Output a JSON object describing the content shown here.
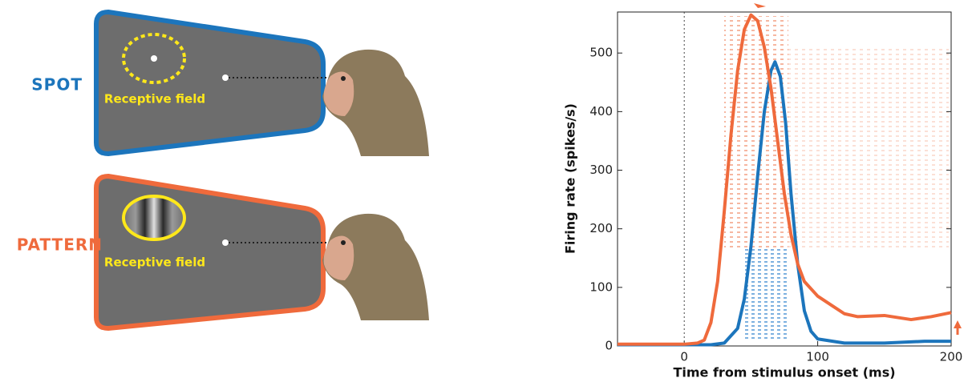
{
  "chart_data": {
    "type": "line",
    "xlabel": "Time from stimulus onset (ms)",
    "ylabel": "Firing rate (spikes/s)",
    "xlim": [
      -50,
      200
    ],
    "xticks": [
      0,
      100,
      200
    ],
    "ylim": [
      0,
      570
    ],
    "yticks": [
      0,
      100,
      200,
      300,
      400,
      500
    ],
    "series": [
      {
        "name": "SPOT",
        "color": "#1c75bc",
        "x": [
          -50,
          0,
          20,
          30,
          40,
          45,
          50,
          55,
          60,
          65,
          68,
          72,
          76,
          80,
          85,
          90,
          95,
          100,
          120,
          150,
          180,
          200
        ],
        "values": [
          2,
          2,
          2,
          5,
          30,
          80,
          170,
          290,
          400,
          470,
          485,
          460,
          380,
          260,
          140,
          60,
          25,
          12,
          5,
          5,
          8,
          8
        ]
      },
      {
        "name": "PATTERN",
        "color": "#ef6a3c",
        "x": [
          -50,
          0,
          10,
          15,
          20,
          25,
          30,
          35,
          40,
          45,
          50,
          55,
          60,
          65,
          70,
          75,
          80,
          85,
          90,
          100,
          110,
          120,
          130,
          150,
          170,
          185,
          200
        ],
        "values": [
          3,
          3,
          5,
          10,
          40,
          110,
          230,
          360,
          470,
          540,
          565,
          555,
          510,
          440,
          350,
          260,
          190,
          140,
          110,
          85,
          70,
          55,
          50,
          52,
          45,
          50,
          57
        ]
      }
    ]
  },
  "diagram": {
    "receptive_field_labels": [
      "Receptive field",
      "Receptive field"
    ]
  }
}
